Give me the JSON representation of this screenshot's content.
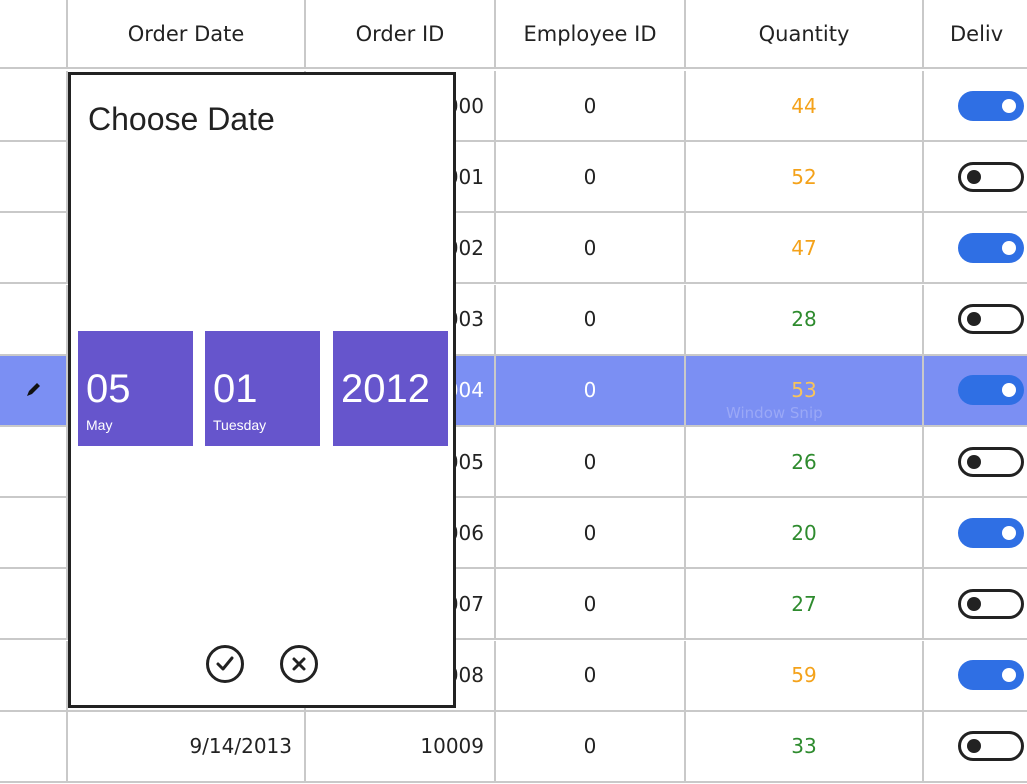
{
  "columns": [
    "",
    "Order Date",
    "Order ID",
    "Employee ID",
    "Quantity",
    "Deliv"
  ],
  "rows": [
    {
      "date": "",
      "id": "000",
      "emp": "0",
      "qty": "44",
      "qty_color": "orange",
      "delivered": true
    },
    {
      "date": "",
      "id": "001",
      "emp": "0",
      "qty": "52",
      "qty_color": "orange",
      "delivered": false
    },
    {
      "date": "",
      "id": "002",
      "emp": "0",
      "qty": "47",
      "qty_color": "orange",
      "delivered": true
    },
    {
      "date": "",
      "id": "003",
      "emp": "0",
      "qty": "28",
      "qty_color": "green",
      "delivered": false
    },
    {
      "date": "",
      "id": "004",
      "emp": "0",
      "qty": "53",
      "qty_color": "orange",
      "delivered": true,
      "selected": true
    },
    {
      "date": "",
      "id": "005",
      "emp": "0",
      "qty": "26",
      "qty_color": "green",
      "delivered": false
    },
    {
      "date": "",
      "id": "006",
      "emp": "0",
      "qty": "20",
      "qty_color": "green",
      "delivered": true
    },
    {
      "date": "",
      "id": "007",
      "emp": "0",
      "qty": "27",
      "qty_color": "green",
      "delivered": false
    },
    {
      "date": "",
      "id": "008",
      "emp": "0",
      "qty": "59",
      "qty_color": "orange",
      "delivered": true
    },
    {
      "date": "9/14/2013",
      "id": "10009",
      "emp": "0",
      "qty": "33",
      "qty_color": "green",
      "delivered": false
    }
  ],
  "watermark": "Window Snip",
  "date_picker": {
    "title": "Choose Date",
    "month": {
      "value": "05",
      "label": "May"
    },
    "day": {
      "value": "01",
      "label": "Tuesday"
    },
    "year": {
      "value": "2012",
      "label": ""
    }
  }
}
